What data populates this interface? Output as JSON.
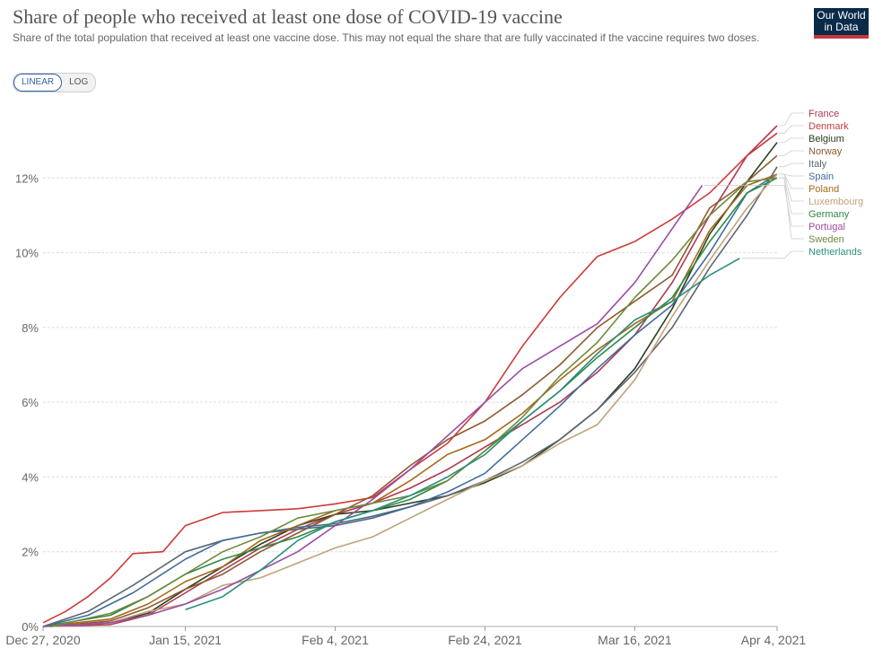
{
  "header": {
    "title": "Share of people who received at least one dose of COVID-19 vaccine",
    "subtitle": "Share of the total population that received at least one vaccine dose. This may not equal the share that are fully vaccinated if the vaccine requires two doses.",
    "logo_line1": "Our World",
    "logo_line2": "in Data"
  },
  "controls": {
    "linear_label": "LINEAR",
    "log_label": "LOG",
    "selected": "LINEAR"
  },
  "chart_data": {
    "type": "line",
    "x_axis": {
      "type": "date",
      "range": [
        "2020-12-27",
        "2021-04-04"
      ],
      "tick_labels": [
        "Dec 27, 2020",
        "Jan 15, 2021",
        "Feb 4, 2021",
        "Feb 24, 2021",
        "Mar 16, 2021",
        "Apr 4, 2021"
      ],
      "tick_dates": [
        "2020-12-27",
        "2021-01-15",
        "2021-02-04",
        "2021-02-24",
        "2021-03-16",
        "2021-04-04"
      ]
    },
    "y_axis": {
      "range": [
        0,
        14
      ],
      "unit": "%",
      "ticks": [
        0,
        2,
        4,
        6,
        8,
        10,
        12
      ],
      "tick_labels": [
        "0%",
        "2%",
        "4%",
        "6%",
        "8%",
        "10%",
        "12%"
      ],
      "scale": "linear",
      "grid": true
    },
    "legend_placement": "right",
    "series": [
      {
        "name": "France",
        "color": "#b13851",
        "points": [
          [
            "2020-12-27",
            0
          ],
          [
            "2021-01-05",
            0.05
          ],
          [
            "2021-01-10",
            0.3
          ],
          [
            "2021-01-15",
            0.9
          ],
          [
            "2021-01-20",
            1.5
          ],
          [
            "2021-01-25",
            2.1
          ],
          [
            "2021-01-30",
            2.6
          ],
          [
            "2021-02-04",
            3.0
          ],
          [
            "2021-02-09",
            3.3
          ],
          [
            "2021-02-14",
            3.7
          ],
          [
            "2021-02-19",
            4.2
          ],
          [
            "2021-02-24",
            4.8
          ],
          [
            "2021-03-01",
            5.4
          ],
          [
            "2021-03-06",
            6.0
          ],
          [
            "2021-03-11",
            6.8
          ],
          [
            "2021-03-16",
            7.8
          ],
          [
            "2021-03-21",
            9.2
          ],
          [
            "2021-03-26",
            11.0
          ],
          [
            "2021-03-31",
            12.6
          ],
          [
            "2021-04-04",
            13.4
          ]
        ]
      },
      {
        "name": "Denmark",
        "color": "#ce3a3a",
        "points": [
          [
            "2020-12-27",
            0.1
          ],
          [
            "2020-12-30",
            0.4
          ],
          [
            "2021-01-02",
            0.8
          ],
          [
            "2021-01-05",
            1.3
          ],
          [
            "2021-01-08",
            1.95
          ],
          [
            "2021-01-12",
            2.0
          ],
          [
            "2021-01-15",
            2.7
          ],
          [
            "2021-01-20",
            3.05
          ],
          [
            "2021-01-25",
            3.1
          ],
          [
            "2021-01-30",
            3.15
          ],
          [
            "2021-02-04",
            3.28
          ],
          [
            "2021-02-09",
            3.45
          ],
          [
            "2021-02-14",
            4.2
          ],
          [
            "2021-02-19",
            4.9
          ],
          [
            "2021-02-24",
            6.0
          ],
          [
            "2021-03-01",
            7.5
          ],
          [
            "2021-03-06",
            8.8
          ],
          [
            "2021-03-11",
            9.9
          ],
          [
            "2021-03-16",
            10.3
          ],
          [
            "2021-03-21",
            10.9
          ],
          [
            "2021-03-26",
            11.6
          ],
          [
            "2021-03-31",
            12.6
          ],
          [
            "2021-04-04",
            13.2
          ]
        ]
      },
      {
        "name": "Belgium",
        "color": "#2b3f1c",
        "points": [
          [
            "2020-12-28",
            0
          ],
          [
            "2021-01-05",
            0.1
          ],
          [
            "2021-01-10",
            0.35
          ],
          [
            "2021-01-15",
            1.0
          ],
          [
            "2021-01-20",
            1.6
          ],
          [
            "2021-01-25",
            2.2
          ],
          [
            "2021-01-30",
            2.7
          ],
          [
            "2021-02-04",
            3.0
          ],
          [
            "2021-02-09",
            3.1
          ],
          [
            "2021-02-14",
            3.3
          ],
          [
            "2021-02-19",
            3.5
          ],
          [
            "2021-02-24",
            3.85
          ],
          [
            "2021-03-01",
            4.3
          ],
          [
            "2021-03-06",
            5.0
          ],
          [
            "2021-03-11",
            5.8
          ],
          [
            "2021-03-16",
            6.9
          ],
          [
            "2021-03-21",
            8.5
          ],
          [
            "2021-03-26",
            10.5
          ],
          [
            "2021-03-31",
            11.9
          ],
          [
            "2021-04-04",
            12.95
          ]
        ]
      },
      {
        "name": "Norway",
        "color": "#8d5a2f",
        "points": [
          [
            "2020-12-28",
            0
          ],
          [
            "2021-01-05",
            0.15
          ],
          [
            "2021-01-10",
            0.5
          ],
          [
            "2021-01-15",
            1.0
          ],
          [
            "2021-01-20",
            1.4
          ],
          [
            "2021-01-25",
            2.0
          ],
          [
            "2021-01-30",
            2.5
          ],
          [
            "2021-02-04",
            3.0
          ],
          [
            "2021-02-09",
            3.5
          ],
          [
            "2021-02-14",
            4.3
          ],
          [
            "2021-02-19",
            5.0
          ],
          [
            "2021-02-24",
            5.5
          ],
          [
            "2021-03-01",
            6.2
          ],
          [
            "2021-03-06",
            7.0
          ],
          [
            "2021-03-11",
            8.0
          ],
          [
            "2021-03-16",
            8.7
          ],
          [
            "2021-03-21",
            9.4
          ],
          [
            "2021-03-26",
            11.2
          ],
          [
            "2021-03-31",
            11.9
          ],
          [
            "2021-04-04",
            12.6
          ]
        ]
      },
      {
        "name": "Italy",
        "color": "#5b6772",
        "points": [
          [
            "2020-12-27",
            0
          ],
          [
            "2021-01-02",
            0.4
          ],
          [
            "2021-01-08",
            1.1
          ],
          [
            "2021-01-15",
            2.0
          ],
          [
            "2021-01-20",
            2.3
          ],
          [
            "2021-01-25",
            2.5
          ],
          [
            "2021-01-30",
            2.6
          ],
          [
            "2021-02-04",
            2.7
          ],
          [
            "2021-02-09",
            2.9
          ],
          [
            "2021-02-14",
            3.2
          ],
          [
            "2021-02-19",
            3.5
          ],
          [
            "2021-02-24",
            3.9
          ],
          [
            "2021-03-01",
            4.4
          ],
          [
            "2021-03-06",
            5.0
          ],
          [
            "2021-03-11",
            5.8
          ],
          [
            "2021-03-16",
            6.8
          ],
          [
            "2021-03-21",
            8.0
          ],
          [
            "2021-03-26",
            9.6
          ],
          [
            "2021-03-31",
            11.0
          ],
          [
            "2021-04-04",
            12.3
          ]
        ]
      },
      {
        "name": "Spain",
        "color": "#3f6d9c",
        "points": [
          [
            "2020-12-27",
            0
          ],
          [
            "2021-01-02",
            0.3
          ],
          [
            "2021-01-08",
            0.9
          ],
          [
            "2021-01-15",
            1.8
          ],
          [
            "2021-01-20",
            2.3
          ],
          [
            "2021-01-25",
            2.5
          ],
          [
            "2021-01-30",
            2.65
          ],
          [
            "2021-02-04",
            2.75
          ],
          [
            "2021-02-09",
            2.95
          ],
          [
            "2021-02-14",
            3.2
          ],
          [
            "2021-02-19",
            3.6
          ],
          [
            "2021-02-24",
            4.1
          ],
          [
            "2021-03-01",
            5.0
          ],
          [
            "2021-03-06",
            5.9
          ],
          [
            "2021-03-11",
            6.9
          ],
          [
            "2021-03-16",
            7.8
          ],
          [
            "2021-03-21",
            8.6
          ],
          [
            "2021-03-26",
            10.0
          ],
          [
            "2021-03-31",
            11.6
          ],
          [
            "2021-04-04",
            12.1
          ]
        ]
      },
      {
        "name": "Poland",
        "color": "#a5691a",
        "points": [
          [
            "2020-12-27",
            0
          ],
          [
            "2021-01-05",
            0.2
          ],
          [
            "2021-01-10",
            0.6
          ],
          [
            "2021-01-15",
            1.2
          ],
          [
            "2021-01-20",
            1.6
          ],
          [
            "2021-01-25",
            2.3
          ],
          [
            "2021-01-30",
            2.7
          ],
          [
            "2021-02-04",
            3.1
          ],
          [
            "2021-02-09",
            3.3
          ],
          [
            "2021-02-14",
            3.9
          ],
          [
            "2021-02-19",
            4.6
          ],
          [
            "2021-02-24",
            5.0
          ],
          [
            "2021-03-01",
            5.7
          ],
          [
            "2021-03-06",
            6.6
          ],
          [
            "2021-03-11",
            7.4
          ],
          [
            "2021-03-16",
            8.1
          ],
          [
            "2021-03-21",
            8.7
          ],
          [
            "2021-03-26",
            10.6
          ],
          [
            "2021-03-31",
            11.8
          ],
          [
            "2021-04-04",
            12.1
          ]
        ]
      },
      {
        "name": "Luxembourg",
        "color": "#c2a27a",
        "points": [
          [
            "2020-12-28",
            0
          ],
          [
            "2021-01-05",
            0.1
          ],
          [
            "2021-01-10",
            0.4
          ],
          [
            "2021-01-15",
            0.6
          ],
          [
            "2021-01-20",
            1.1
          ],
          [
            "2021-01-25",
            1.3
          ],
          [
            "2021-01-30",
            1.7
          ],
          [
            "2021-02-04",
            2.1
          ],
          [
            "2021-02-09",
            2.4
          ],
          [
            "2021-02-14",
            2.9
          ],
          [
            "2021-02-19",
            3.4
          ],
          [
            "2021-02-24",
            3.9
          ],
          [
            "2021-03-01",
            4.3
          ],
          [
            "2021-03-06",
            4.9
          ],
          [
            "2021-03-11",
            5.4
          ],
          [
            "2021-03-16",
            6.6
          ],
          [
            "2021-03-21",
            8.3
          ],
          [
            "2021-03-26",
            9.8
          ],
          [
            "2021-03-31",
            11.2
          ],
          [
            "2021-04-04",
            12.1
          ]
        ]
      },
      {
        "name": "Germany",
        "color": "#2f8a47",
        "points": [
          [
            "2020-12-27",
            0
          ],
          [
            "2021-01-05",
            0.3
          ],
          [
            "2021-01-10",
            0.8
          ],
          [
            "2021-01-15",
            1.4
          ],
          [
            "2021-01-20",
            1.8
          ],
          [
            "2021-01-25",
            2.1
          ],
          [
            "2021-01-30",
            2.4
          ],
          [
            "2021-02-04",
            2.8
          ],
          [
            "2021-02-09",
            3.1
          ],
          [
            "2021-02-14",
            3.4
          ],
          [
            "2021-02-19",
            3.9
          ],
          [
            "2021-02-24",
            4.7
          ],
          [
            "2021-03-01",
            5.5
          ],
          [
            "2021-03-06",
            6.3
          ],
          [
            "2021-03-11",
            7.2
          ],
          [
            "2021-03-16",
            8.0
          ],
          [
            "2021-03-21",
            8.8
          ],
          [
            "2021-03-26",
            10.3
          ],
          [
            "2021-03-31",
            11.6
          ],
          [
            "2021-04-04",
            12.0
          ]
        ]
      },
      {
        "name": "Portugal",
        "color": "#9b4ca5",
        "points": [
          [
            "2020-12-27",
            0
          ],
          [
            "2021-01-05",
            0.1
          ],
          [
            "2021-01-10",
            0.3
          ],
          [
            "2021-01-15",
            0.6
          ],
          [
            "2021-01-20",
            1.0
          ],
          [
            "2021-01-25",
            1.5
          ],
          [
            "2021-01-30",
            2.0
          ],
          [
            "2021-02-04",
            2.7
          ],
          [
            "2021-02-09",
            3.4
          ],
          [
            "2021-02-14",
            4.2
          ],
          [
            "2021-02-19",
            5.1
          ],
          [
            "2021-02-24",
            6.0
          ],
          [
            "2021-03-01",
            6.9
          ],
          [
            "2021-03-06",
            7.5
          ],
          [
            "2021-03-11",
            8.1
          ],
          [
            "2021-03-16",
            9.2
          ],
          [
            "2021-03-25",
            11.8
          ]
        ]
      },
      {
        "name": "Sweden",
        "color": "#6f8a3d",
        "points": [
          [
            "2020-12-28",
            0
          ],
          [
            "2021-01-05",
            0.35
          ],
          [
            "2021-01-10",
            0.8
          ],
          [
            "2021-01-15",
            1.4
          ],
          [
            "2021-01-20",
            2.0
          ],
          [
            "2021-01-25",
            2.4
          ],
          [
            "2021-01-30",
            2.9
          ],
          [
            "2021-02-04",
            3.1
          ],
          [
            "2021-02-09",
            3.3
          ],
          [
            "2021-02-14",
            3.5
          ],
          [
            "2021-02-19",
            3.9
          ],
          [
            "2021-02-24",
            4.7
          ],
          [
            "2021-03-01",
            5.6
          ],
          [
            "2021-03-06",
            6.7
          ],
          [
            "2021-03-11",
            7.6
          ],
          [
            "2021-03-16",
            8.8
          ],
          [
            "2021-03-21",
            9.8
          ],
          [
            "2021-03-26",
            11.0
          ],
          [
            "2021-03-31",
            11.9
          ],
          [
            "2021-04-04",
            12.0
          ]
        ]
      },
      {
        "name": "Netherlands",
        "color": "#2d8e7b",
        "points": [
          [
            "2021-01-15",
            0.45
          ],
          [
            "2021-01-20",
            0.8
          ],
          [
            "2021-01-25",
            1.5
          ],
          [
            "2021-01-30",
            2.3
          ],
          [
            "2021-02-04",
            2.8
          ],
          [
            "2021-02-09",
            3.1
          ],
          [
            "2021-02-14",
            3.5
          ],
          [
            "2021-02-19",
            4.0
          ],
          [
            "2021-02-24",
            4.6
          ],
          [
            "2021-03-01",
            5.5
          ],
          [
            "2021-03-06",
            6.3
          ],
          [
            "2021-03-11",
            7.3
          ],
          [
            "2021-03-16",
            8.2
          ],
          [
            "2021-03-21",
            8.7
          ],
          [
            "2021-03-26",
            9.4
          ],
          [
            "2021-03-30",
            9.85
          ]
        ]
      }
    ]
  }
}
